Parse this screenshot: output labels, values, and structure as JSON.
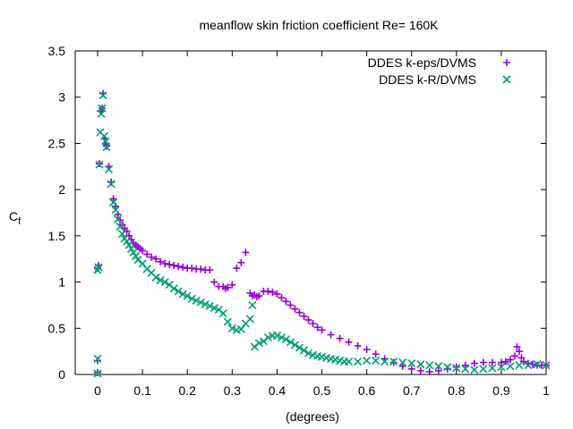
{
  "chart_data": {
    "type": "scatter",
    "title": "meanflow skin friction coefficient Re= 160K",
    "xlabel": "(degrees)",
    "ylabel": "C",
    "ylabel_sub": "f",
    "xlim": [
      -0.05,
      1.0
    ],
    "ylim": [
      0,
      3.5
    ],
    "xticks": [
      0,
      0.1,
      0.2,
      0.3,
      0.4,
      0.5,
      0.6,
      0.7,
      0.8,
      0.9,
      1
    ],
    "xtick_labels": [
      "0",
      "0.1",
      "0.2",
      "0.3",
      "0.4",
      "0.5",
      "0.6",
      "0.7",
      "0.8",
      "0.9",
      "1"
    ],
    "yticks": [
      0,
      0.5,
      1,
      1.5,
      2,
      2.5,
      3,
      3.5
    ],
    "ytick_labels": [
      "0",
      "0.5",
      "1",
      "1.5",
      "2",
      "2.5",
      "3",
      "3.5"
    ],
    "grid": false,
    "legend_position": "top-right",
    "series": [
      {
        "name": "DDES k-eps/DVMS",
        "marker": "plus",
        "color": "#9400d3",
        "x": [
          0.0,
          0.0,
          0.0,
          0.002,
          0.004,
          0.006,
          0.008,
          0.01,
          0.012,
          0.015,
          0.018,
          0.02,
          0.025,
          0.03,
          0.035,
          0.04,
          0.045,
          0.05,
          0.055,
          0.06,
          0.065,
          0.07,
          0.075,
          0.08,
          0.085,
          0.09,
          0.095,
          0.1,
          0.11,
          0.12,
          0.13,
          0.14,
          0.15,
          0.16,
          0.17,
          0.18,
          0.19,
          0.2,
          0.21,
          0.22,
          0.23,
          0.24,
          0.25,
          0.26,
          0.27,
          0.28,
          0.285,
          0.29,
          0.3,
          0.31,
          0.32,
          0.33,
          0.34,
          0.345,
          0.35,
          0.355,
          0.36,
          0.37,
          0.38,
          0.39,
          0.4,
          0.41,
          0.42,
          0.43,
          0.44,
          0.45,
          0.46,
          0.47,
          0.48,
          0.49,
          0.5,
          0.52,
          0.54,
          0.56,
          0.58,
          0.6,
          0.62,
          0.64,
          0.66,
          0.68,
          0.7,
          0.72,
          0.74,
          0.76,
          0.78,
          0.8,
          0.82,
          0.84,
          0.86,
          0.88,
          0.9,
          0.91,
          0.92,
          0.93,
          0.935,
          0.94,
          0.945,
          0.95,
          0.96,
          0.97,
          0.98,
          0.99,
          1.0
        ],
        "y": [
          0.02,
          0.15,
          1.15,
          1.18,
          2.28,
          2.85,
          2.85,
          2.88,
          3.04,
          2.55,
          2.5,
          2.47,
          2.25,
          2.08,
          1.9,
          1.82,
          1.73,
          1.67,
          1.62,
          1.58,
          1.55,
          1.5,
          1.46,
          1.42,
          1.4,
          1.38,
          1.36,
          1.34,
          1.3,
          1.27,
          1.25,
          1.22,
          1.2,
          1.19,
          1.18,
          1.17,
          1.16,
          1.15,
          1.15,
          1.14,
          1.14,
          1.13,
          1.13,
          1.0,
          0.95,
          0.95,
          0.93,
          0.94,
          0.97,
          1.15,
          1.21,
          1.32,
          0.88,
          0.85,
          0.86,
          0.84,
          0.85,
          0.9,
          0.9,
          0.89,
          0.87,
          0.83,
          0.79,
          0.75,
          0.71,
          0.67,
          0.63,
          0.59,
          0.55,
          0.51,
          0.48,
          0.43,
          0.39,
          0.35,
          0.31,
          0.27,
          0.22,
          0.17,
          0.13,
          0.09,
          0.06,
          0.04,
          0.03,
          0.04,
          0.06,
          0.08,
          0.1,
          0.12,
          0.13,
          0.13,
          0.13,
          0.14,
          0.16,
          0.2,
          0.3,
          0.25,
          0.18,
          0.14,
          0.12,
          0.11,
          0.1,
          0.1,
          0.1
        ]
      },
      {
        "name": "DDES k-R/DVMS",
        "marker": "cross",
        "color": "#009e73",
        "x": [
          0.0,
          0.0,
          0.0,
          0.002,
          0.004,
          0.006,
          0.008,
          0.01,
          0.012,
          0.015,
          0.018,
          0.02,
          0.025,
          0.03,
          0.035,
          0.04,
          0.045,
          0.05,
          0.055,
          0.06,
          0.065,
          0.07,
          0.075,
          0.08,
          0.085,
          0.09,
          0.1,
          0.11,
          0.12,
          0.13,
          0.14,
          0.15,
          0.16,
          0.17,
          0.18,
          0.19,
          0.2,
          0.21,
          0.22,
          0.23,
          0.24,
          0.25,
          0.26,
          0.27,
          0.28,
          0.29,
          0.3,
          0.31,
          0.32,
          0.33,
          0.34,
          0.345,
          0.35,
          0.36,
          0.37,
          0.38,
          0.39,
          0.4,
          0.41,
          0.42,
          0.43,
          0.44,
          0.45,
          0.46,
          0.47,
          0.48,
          0.49,
          0.5,
          0.51,
          0.52,
          0.53,
          0.54,
          0.55,
          0.56,
          0.58,
          0.6,
          0.62,
          0.64,
          0.66,
          0.68,
          0.7,
          0.72,
          0.74,
          0.76,
          0.78,
          0.8,
          0.82,
          0.84,
          0.86,
          0.88,
          0.9,
          0.92,
          0.94,
          0.96,
          0.98,
          1.0
        ],
        "y": [
          0.01,
          0.17,
          1.13,
          1.16,
          2.27,
          2.62,
          2.82,
          2.88,
          3.02,
          2.58,
          2.52,
          2.46,
          2.22,
          2.06,
          1.86,
          1.78,
          1.68,
          1.6,
          1.52,
          1.47,
          1.44,
          1.4,
          1.36,
          1.32,
          1.28,
          1.24,
          1.2,
          1.14,
          1.1,
          1.05,
          1.02,
          1.0,
          0.97,
          0.93,
          0.9,
          0.87,
          0.85,
          0.82,
          0.8,
          0.78,
          0.76,
          0.74,
          0.72,
          0.7,
          0.66,
          0.57,
          0.5,
          0.48,
          0.49,
          0.55,
          0.6,
          0.75,
          0.3,
          0.34,
          0.36,
          0.4,
          0.42,
          0.42,
          0.4,
          0.38,
          0.35,
          0.32,
          0.29,
          0.26,
          0.23,
          0.21,
          0.2,
          0.19,
          0.18,
          0.17,
          0.16,
          0.15,
          0.14,
          0.14,
          0.14,
          0.15,
          0.15,
          0.14,
          0.14,
          0.13,
          0.12,
          0.11,
          0.1,
          0.09,
          0.08,
          0.07,
          0.06,
          0.05,
          0.06,
          0.07,
          0.08,
          0.09,
          0.1,
          0.1,
          0.11,
          0.1
        ]
      }
    ]
  }
}
